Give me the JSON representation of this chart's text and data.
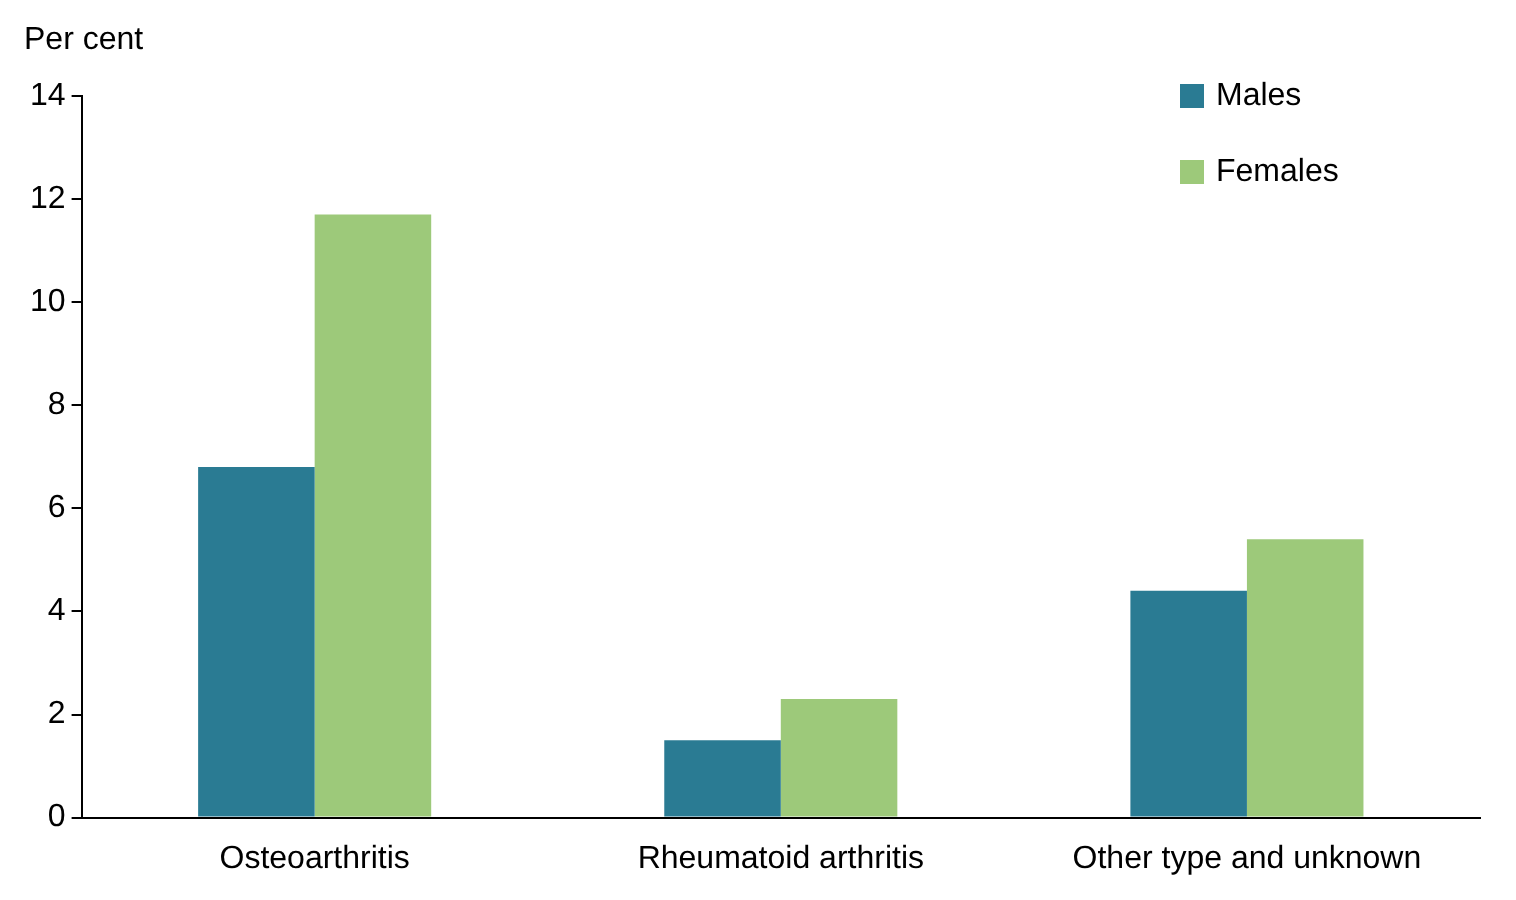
{
  "chart_data": {
    "type": "bar",
    "ylabel": "Per cent",
    "categories": [
      "Osteoarthritis",
      "Rheumatoid arthritis",
      "Other type and unknown"
    ],
    "series": [
      {
        "name": "Males",
        "color": "#2a7b93",
        "values": [
          6.8,
          1.5,
          4.4
        ]
      },
      {
        "name": "Females",
        "color": "#9dc97a",
        "values": [
          11.7,
          2.3,
          5.4
        ]
      }
    ],
    "ylim": [
      0,
      14
    ],
    "yticks": [
      0,
      2,
      4,
      6,
      8,
      10,
      12,
      14
    ],
    "grid": false,
    "legend": "top right"
  }
}
